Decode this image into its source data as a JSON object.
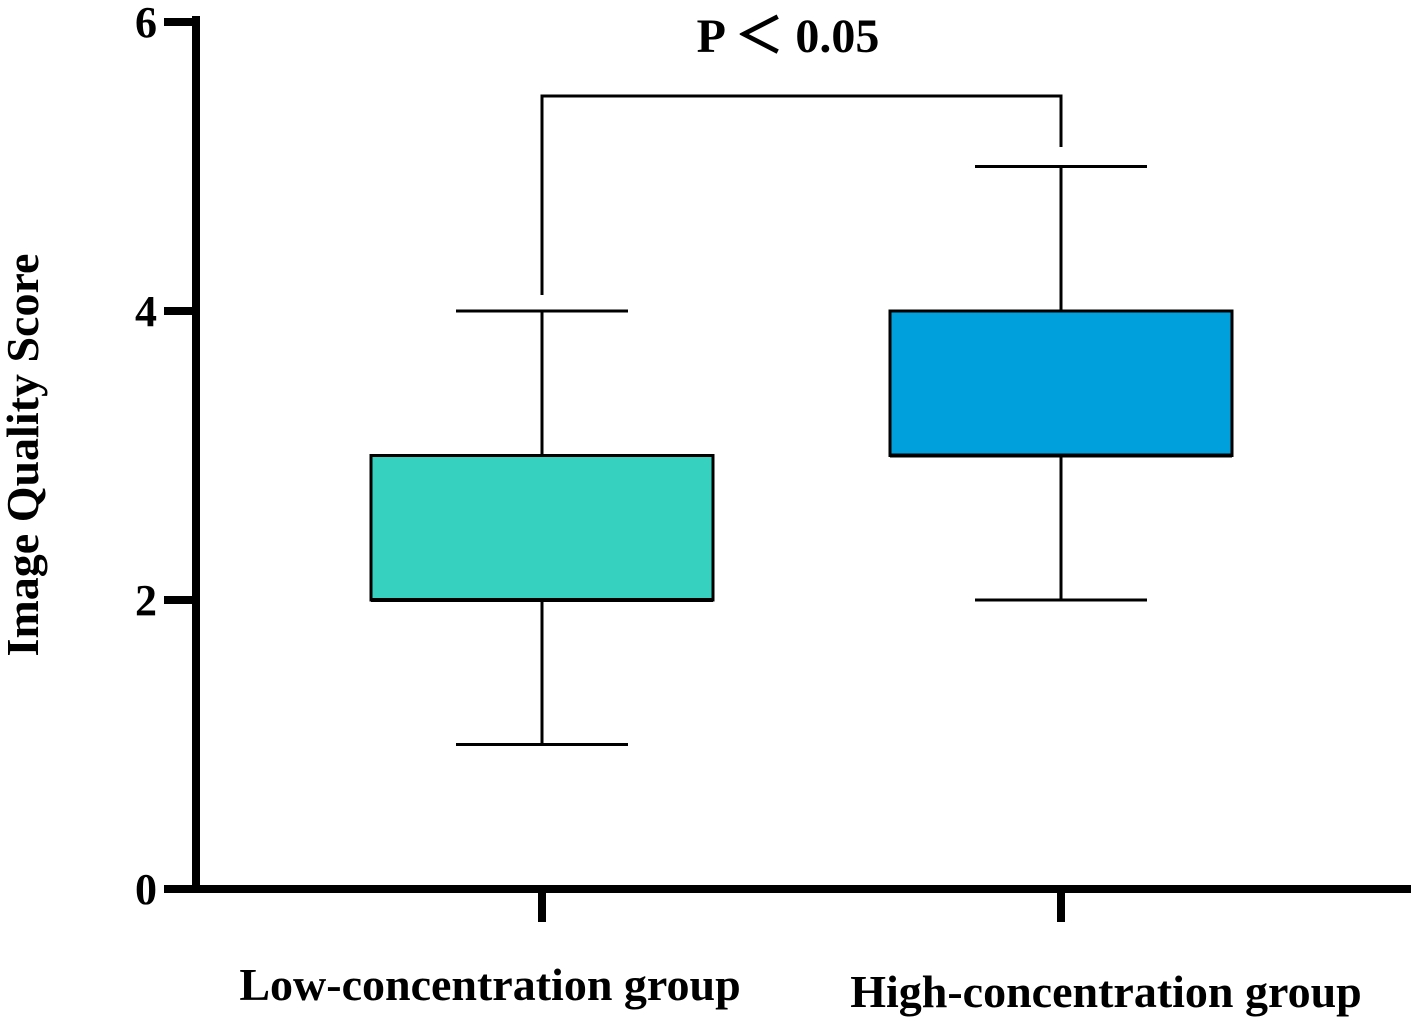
{
  "chart_data": {
    "type": "box",
    "title": "",
    "xlabel": "",
    "ylabel": "Image Quality Score",
    "ylim": [
      0,
      6
    ],
    "yticks": [
      "0",
      "2",
      "4",
      "6"
    ],
    "grid": false,
    "legend": "none",
    "categories": [
      "Low-concentration group",
      "High-concentration group"
    ],
    "boxes": [
      {
        "category": "Low-concentration group",
        "min": 1,
        "q1": 2,
        "median": 2,
        "q3": 3,
        "max": 4,
        "color": "#36d1bf"
      },
      {
        "category": "High-concentration group",
        "min": 2,
        "q1": 3,
        "median": 3,
        "q3": 4,
        "max": 5,
        "color": "#00a0dc"
      }
    ],
    "annotation": {
      "text": "P ＜ 0.05",
      "between": [
        "Low-concentration group",
        "High-concentration group"
      ]
    }
  }
}
